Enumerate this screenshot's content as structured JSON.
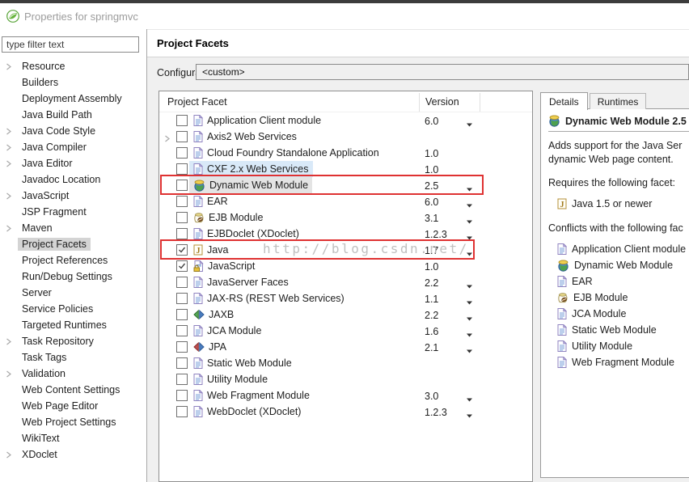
{
  "window": {
    "title": "Properties for springmvc"
  },
  "sidebar": {
    "filter_placeholder": "type filter text",
    "items": [
      {
        "label": "Resource",
        "expandable": true
      },
      {
        "label": "Builders",
        "expandable": false
      },
      {
        "label": "Deployment Assembly",
        "expandable": false
      },
      {
        "label": "Java Build Path",
        "expandable": false
      },
      {
        "label": "Java Code Style",
        "expandable": true
      },
      {
        "label": "Java Compiler",
        "expandable": true
      },
      {
        "label": "Java Editor",
        "expandable": true
      },
      {
        "label": "Javadoc Location",
        "expandable": false
      },
      {
        "label": "JavaScript",
        "expandable": true
      },
      {
        "label": "JSP Fragment",
        "expandable": false
      },
      {
        "label": "Maven",
        "expandable": true
      },
      {
        "label": "Project Facets",
        "expandable": false,
        "selected": true
      },
      {
        "label": "Project References",
        "expandable": false
      },
      {
        "label": "Run/Debug Settings",
        "expandable": false
      },
      {
        "label": "Server",
        "expandable": false
      },
      {
        "label": "Service Policies",
        "expandable": false
      },
      {
        "label": "Targeted Runtimes",
        "expandable": false
      },
      {
        "label": "Task Repository",
        "expandable": true
      },
      {
        "label": "Task Tags",
        "expandable": false
      },
      {
        "label": "Validation",
        "expandable": true
      },
      {
        "label": "Web Content Settings",
        "expandable": false
      },
      {
        "label": "Web Page Editor",
        "expandable": false
      },
      {
        "label": "Web Project Settings",
        "expandable": false
      },
      {
        "label": "WikiText",
        "expandable": false
      },
      {
        "label": "XDoclet",
        "expandable": true
      }
    ]
  },
  "page": {
    "title": "Project Facets"
  },
  "configuration": {
    "label": "Configuration:",
    "value": "<custom>"
  },
  "facet_table": {
    "columns": [
      "Project Facet",
      "Version"
    ],
    "rows": [
      {
        "label": "Application Client module",
        "icon": "doc",
        "checked": false,
        "version": "6.0",
        "dropdown": true
      },
      {
        "label": "Axis2 Web Services",
        "icon": "doc",
        "checked": false,
        "version": "",
        "dropdown": false,
        "expandable": true
      },
      {
        "label": "Cloud Foundry Standalone Application",
        "icon": "doc",
        "checked": false,
        "version": "1.0",
        "dropdown": false
      },
      {
        "label": "CXF 2.x Web Services",
        "icon": "doc",
        "checked": false,
        "version": "1.0",
        "dropdown": false,
        "highlight": "blue"
      },
      {
        "label": "Dynamic Web Module",
        "icon": "globe",
        "checked": false,
        "version": "2.5",
        "dropdown": true,
        "highlight": "gray"
      },
      {
        "label": "EAR",
        "icon": "doc",
        "checked": false,
        "version": "6.0",
        "dropdown": true
      },
      {
        "label": "EJB Module",
        "icon": "jar",
        "checked": false,
        "version": "3.1",
        "dropdown": true
      },
      {
        "label": "EJBDoclet (XDoclet)",
        "icon": "doc",
        "checked": false,
        "version": "1.2.3",
        "dropdown": true
      },
      {
        "label": "Java",
        "icon": "java",
        "checked": true,
        "version": "1.7",
        "dropdown": true
      },
      {
        "label": "JavaScript",
        "icon": "js-lock",
        "checked": true,
        "version": "1.0",
        "dropdown": false
      },
      {
        "label": "JavaServer Faces",
        "icon": "doc",
        "checked": false,
        "version": "2.2",
        "dropdown": true
      },
      {
        "label": "JAX-RS (REST Web Services)",
        "icon": "doc",
        "checked": false,
        "version": "1.1",
        "dropdown": true
      },
      {
        "label": "JAXB",
        "icon": "arrows-green",
        "checked": false,
        "version": "2.2",
        "dropdown": true
      },
      {
        "label": "JCA Module",
        "icon": "doc",
        "checked": false,
        "version": "1.6",
        "dropdown": true
      },
      {
        "label": "JPA",
        "icon": "arrows-red",
        "checked": false,
        "version": "2.1",
        "dropdown": true
      },
      {
        "label": "Static Web Module",
        "icon": "doc",
        "checked": false,
        "version": "",
        "dropdown": false
      },
      {
        "label": "Utility Module",
        "icon": "doc",
        "checked": false,
        "version": "",
        "dropdown": false
      },
      {
        "label": "Web Fragment Module",
        "icon": "doc",
        "checked": false,
        "version": "3.0",
        "dropdown": true
      },
      {
        "label": "WebDoclet (XDoclet)",
        "icon": "doc",
        "checked": false,
        "version": "1.2.3",
        "dropdown": true
      }
    ]
  },
  "details_panel": {
    "tabs": [
      {
        "label": "Details",
        "active": true
      },
      {
        "label": "Runtimes",
        "active": false
      }
    ],
    "heading": "Dynamic Web Module 2.5",
    "heading_icon": "globe",
    "description_lines": [
      "Adds support for the Java Ser",
      "dynamic Web page content."
    ],
    "requires_label": "Requires the following facet:",
    "requires": [
      {
        "label": "Java 1.5 or newer",
        "icon": "java"
      }
    ],
    "conflicts_label": "Conflicts with the following fac",
    "conflicts": [
      {
        "label": "Application Client module",
        "icon": "doc"
      },
      {
        "label": "Dynamic Web Module",
        "icon": "globe"
      },
      {
        "label": "EAR",
        "icon": "doc"
      },
      {
        "label": "EJB Module",
        "icon": "jar"
      },
      {
        "label": "JCA Module",
        "icon": "doc"
      },
      {
        "label": "Static Web Module",
        "icon": "doc"
      },
      {
        "label": "Utility Module",
        "icon": "doc"
      },
      {
        "label": "Web Fragment Module",
        "icon": "doc"
      }
    ]
  },
  "watermark": {
    "text": "http://blog.csdn.net/"
  },
  "colors": {
    "annotation_red": "#df3232",
    "selection_gray": "#e4e4e4",
    "selection_blue": "#d9e9f8",
    "spring_green": "#68b43e",
    "title_gray": "#9c9c9c",
    "watermark_gray": "#b9b9b9"
  }
}
